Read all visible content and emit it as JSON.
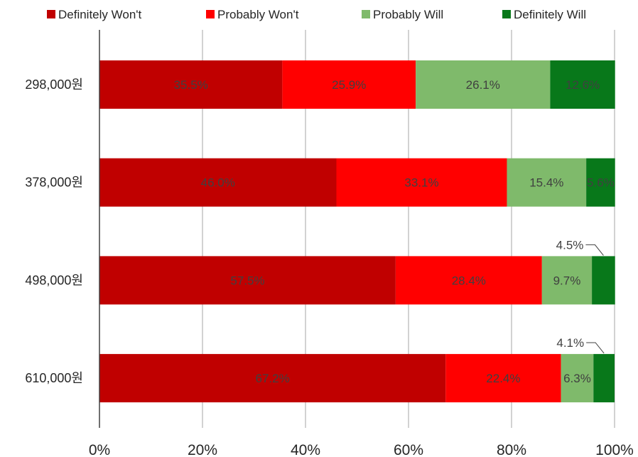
{
  "chart_data": {
    "type": "bar",
    "orientation": "horizontal",
    "stacked": "percent",
    "title": "",
    "xlabel": "",
    "ylabel": "",
    "xlim": [
      0,
      100
    ],
    "x_ticks": [
      "0%",
      "20%",
      "40%",
      "60%",
      "80%",
      "100%"
    ],
    "grid": true,
    "legend_position": "top",
    "categories": [
      "298,000원",
      "378,000원",
      "498,000원",
      "610,000원"
    ],
    "series": [
      {
        "name": "Definitely Won't",
        "color": "#c00000",
        "values": [
          35.5,
          46.0,
          57.5,
          67.2
        ],
        "labels": [
          "35.5%",
          "46.0%",
          "57.5%",
          "67.2%"
        ]
      },
      {
        "name": "Probably Won't",
        "color": "#ff0000",
        "values": [
          25.9,
          33.1,
          28.4,
          22.4
        ],
        "labels": [
          "25.9%",
          "33.1%",
          "28.4%",
          "22.4%"
        ]
      },
      {
        "name": "Probably Will",
        "color": "#7fba6b",
        "values": [
          26.1,
          15.4,
          9.7,
          6.3
        ],
        "labels": [
          "26.1%",
          "15.4%",
          "9.7%",
          "6.3%"
        ]
      },
      {
        "name": "Definitely Will",
        "color": "#08781a",
        "values": [
          12.6,
          5.6,
          4.5,
          4.1
        ],
        "labels": [
          "12.6%",
          "5.6%",
          "4.5%",
          "4.1%"
        ],
        "callout": [
          false,
          false,
          true,
          true
        ]
      }
    ]
  }
}
